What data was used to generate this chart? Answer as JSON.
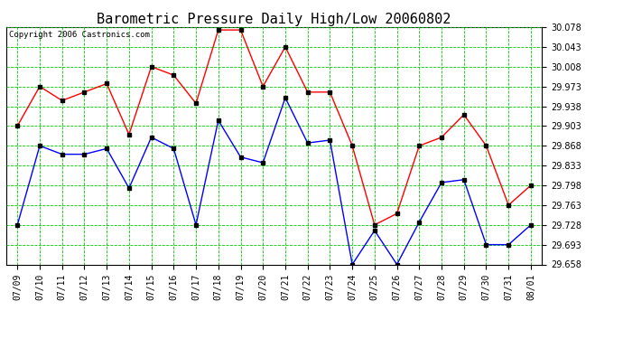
{
  "title": "Barometric Pressure Daily High/Low 20060802",
  "copyright": "Copyright 2006 Castronics.com",
  "dates": [
    "07/09",
    "07/10",
    "07/11",
    "07/12",
    "07/13",
    "07/14",
    "07/15",
    "07/16",
    "07/17",
    "07/18",
    "07/19",
    "07/20",
    "07/21",
    "07/22",
    "07/23",
    "07/24",
    "07/25",
    "07/26",
    "07/27",
    "07/28",
    "07/29",
    "07/30",
    "07/31",
    "08/01"
  ],
  "high": [
    29.903,
    29.973,
    29.948,
    29.963,
    29.978,
    29.888,
    30.008,
    29.993,
    29.943,
    30.073,
    30.073,
    29.973,
    30.043,
    29.963,
    29.963,
    29.868,
    29.728,
    29.748,
    29.868,
    29.883,
    29.923,
    29.868,
    29.763,
    29.798
  ],
  "low": [
    29.728,
    29.868,
    29.853,
    29.853,
    29.863,
    29.793,
    29.883,
    29.863,
    29.728,
    29.913,
    29.848,
    29.838,
    29.953,
    29.873,
    29.878,
    29.658,
    29.718,
    29.658,
    29.733,
    29.803,
    29.808,
    29.693,
    29.693,
    29.728
  ],
  "ymin": 29.658,
  "ymax": 30.078,
  "yticks": [
    29.658,
    29.693,
    29.728,
    29.763,
    29.798,
    29.833,
    29.868,
    29.903,
    29.938,
    29.973,
    30.008,
    30.043,
    30.078
  ],
  "high_color": "#ff0000",
  "low_color": "#0000ff",
  "grid_color": "#00cc00",
  "bg_color": "#ffffff",
  "title_fontsize": 11,
  "tick_fontsize": 7,
  "copyright_fontsize": 6.5,
  "marker_size": 3,
  "line_width": 1.0
}
